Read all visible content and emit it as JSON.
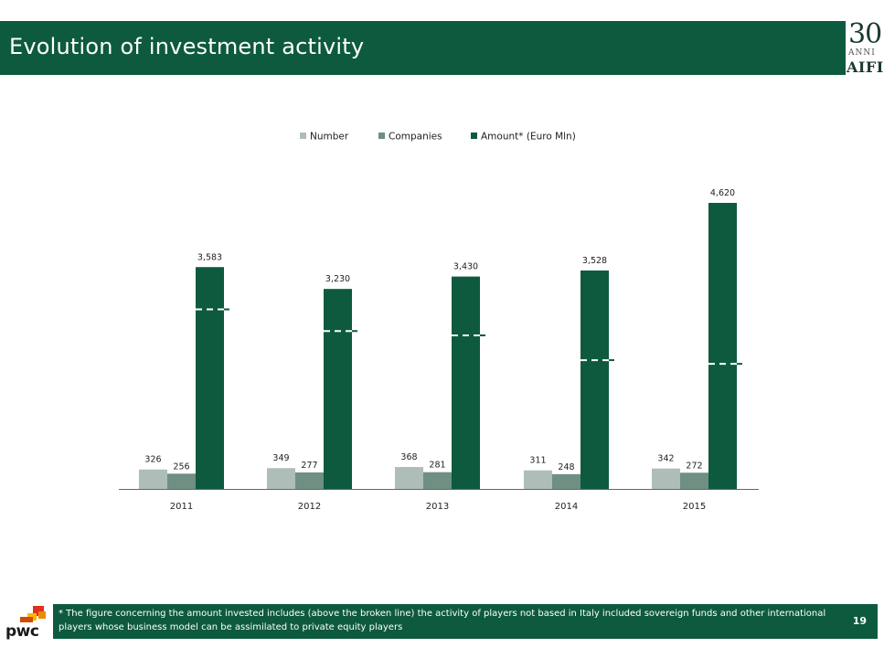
{
  "slide": {
    "title": "Evolution of investment activity",
    "page_number": "19",
    "footnote": "* The figure concerning the amount invested includes (above the broken line) the activity of players not based in Italy included sovereign funds and other international players whose business model can be assimilated to private equity players"
  },
  "logos": {
    "aifi_number": "30",
    "aifi_sub": "ANNI",
    "aifi_word": "AIFI",
    "pwc_word": "pwc"
  },
  "colors": {
    "brand_green": "#0d5a3f",
    "number": "#aebdb7",
    "companies": "#6e8f82",
    "amount": "#0d5a3f"
  },
  "chart_data": {
    "type": "bar",
    "categories": [
      "2011",
      "2012",
      "2013",
      "2014",
      "2015"
    ],
    "series": [
      {
        "name": "Number",
        "values": [
          326,
          349,
          368,
          311,
          342
        ],
        "labels": [
          "326",
          "349",
          "368",
          "311",
          "342"
        ]
      },
      {
        "name": "Companies",
        "values": [
          256,
          277,
          281,
          248,
          272
        ],
        "labels": [
          "256",
          "277",
          "281",
          "248",
          "272"
        ]
      },
      {
        "name": "Amount* (Euro Mln)",
        "values": [
          3583,
          3230,
          3430,
          3528,
          4620
        ],
        "labels": [
          "3,583",
          "3,230",
          "3,430",
          "3,528",
          "4,620"
        ]
      }
    ],
    "broken_line_values": [
      2900,
      2550,
      2480,
      2080,
      2020
    ],
    "ylim": [
      0,
      4620
    ],
    "legend_position": "top",
    "grid": false
  }
}
